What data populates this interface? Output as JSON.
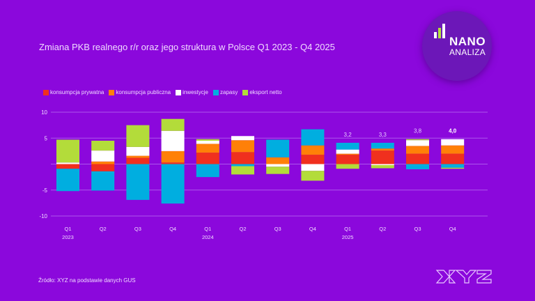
{
  "title": "Zmiana PKB realnego r/r oraz jego struktura w Polsce Q1 2023 - Q4 2025",
  "logo": {
    "line1": "NANO",
    "line2": "ANALIZA",
    "bar_colors": [
      "#ffffff",
      "#b5e03a",
      "#ffffff"
    ]
  },
  "source": "Źródło: XYZ na podstawie danych GUS",
  "brand_mark": "XYZ",
  "colors": {
    "background": "#8B08DC",
    "grid": "#b56af0",
    "text": "#f1dbff"
  },
  "chart_data": {
    "type": "bar",
    "stacked": true,
    "title": "Zmiana PKB realnego r/r oraz jego struktura w Polsce Q1 2023 - Q4 2025",
    "xlabel": "",
    "ylabel": "",
    "ylim": [
      -10,
      10
    ],
    "yticks": [
      10,
      5,
      0,
      -5,
      -10
    ],
    "ytick_labels": [
      "10",
      "5",
      "",
      "-5",
      "-10"
    ],
    "grid": true,
    "legend_position": "top-left",
    "categories": [
      "Q1",
      "Q2",
      "Q3",
      "Q4",
      "Q1",
      "Q2",
      "Q3",
      "Q4",
      "Q1",
      "Q2",
      "Q3",
      "Q4"
    ],
    "year_labels": [
      "2023",
      "",
      "",
      "",
      "2024",
      "",
      "",
      "",
      "2025",
      "",
      "",
      ""
    ],
    "series": [
      {
        "name": "konsumpcja prywatna",
        "color": "#F0301E",
        "values": [
          -0.9,
          -1.4,
          1.2,
          0.3,
          2.2,
          2.3,
          0.0,
          1.8,
          1.8,
          2.6,
          2.0,
          2.0
        ]
      },
      {
        "name": "konsumpcja publiczna",
        "color": "#FF8008",
        "values": [
          0.0,
          0.5,
          0.4,
          2.2,
          1.7,
          2.3,
          1.3,
          1.8,
          0.2,
          0.4,
          1.5,
          1.6
        ]
      },
      {
        "name": "inwestycje",
        "color": "#FFFFFF",
        "values": [
          0.3,
          2.1,
          1.7,
          3.9,
          0.6,
          0.8,
          -0.5,
          -1.3,
          0.8,
          -0.2,
          1.1,
          1.2
        ]
      },
      {
        "name": "zapasy",
        "color": "#00AEE0",
        "values": [
          -4.3,
          -3.7,
          -6.9,
          -7.6,
          -2.5,
          -0.4,
          3.4,
          3.1,
          1.3,
          1.1,
          -1.0,
          -0.7
        ]
      },
      {
        "name": "eksport netto",
        "color": "#B3DC3A",
        "values": [
          4.4,
          1.9,
          4.2,
          2.3,
          0.3,
          -1.6,
          -1.4,
          -1.9,
          -0.9,
          -0.6,
          0.2,
          -0.2
        ]
      }
    ],
    "annotations": [
      "",
      "",
      "",
      "",
      "",
      "",
      "",
      "",
      "3,2",
      "3,3",
      "3,8",
      "4,0"
    ]
  }
}
